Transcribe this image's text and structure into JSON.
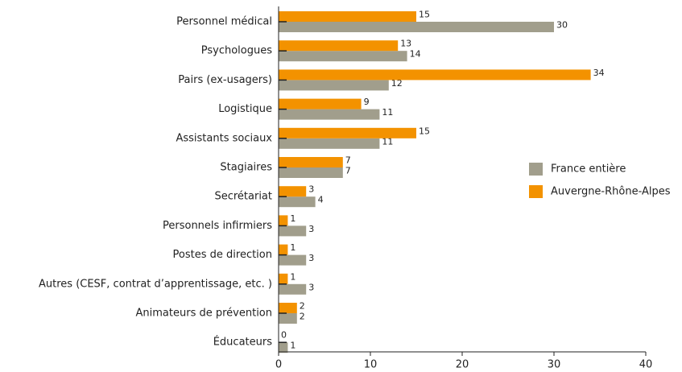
{
  "chart_data": {
    "type": "bar",
    "orientation": "horizontal",
    "categories": [
      "Personnel médical",
      "Psychologues",
      "Pairs (ex-usagers)",
      "Logistique",
      "Assistants sociaux",
      "Stagiaires",
      "Secrétariat",
      "Personnels infirmiers",
      "Postes de direction",
      "Autres (CESF, contrat d’apprentissage, etc. )",
      "Animateurs de prévention",
      "Éducateurs"
    ],
    "series": [
      {
        "name": "France entière",
        "color": "#a19e8c",
        "values": [
          30,
          14,
          12,
          11,
          11,
          7,
          4,
          3,
          3,
          3,
          2,
          1
        ]
      },
      {
        "name": "Auvergne-Rhône-Alpes",
        "color": "#f39200",
        "values": [
          15,
          13,
          34,
          9,
          15,
          7,
          3,
          1,
          1,
          1,
          2,
          0
        ]
      }
    ],
    "xlim": [
      0,
      40
    ],
    "xticks": [
      0,
      10,
      20,
      30,
      40
    ],
    "legend": "right"
  }
}
